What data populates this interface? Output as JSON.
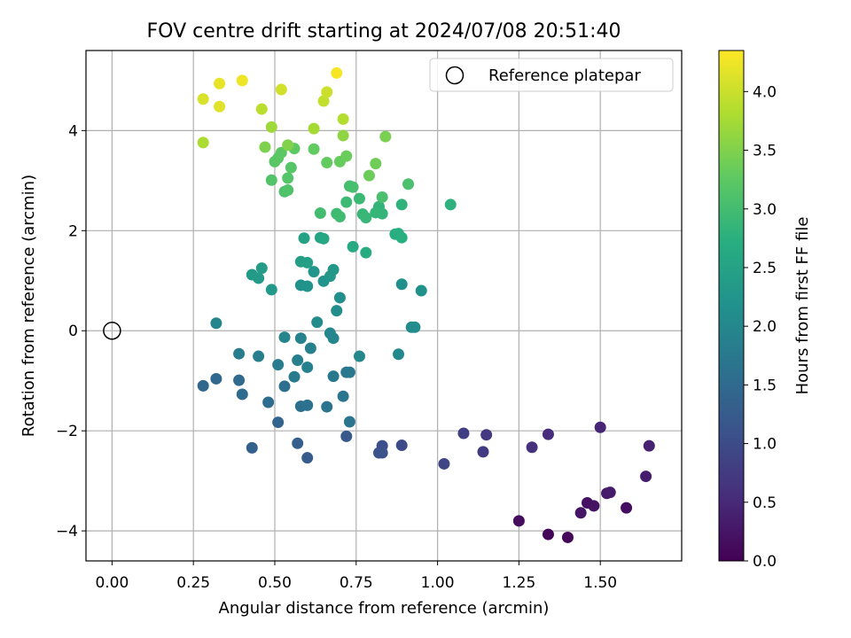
{
  "chart_data": {
    "type": "scatter",
    "title": "FOV centre drift starting at 2024/07/08 20:51:40",
    "xlabel": "Angular distance from reference (arcmin)",
    "ylabel": "Rotation from reference (arcmin)",
    "xlim": [
      -0.08,
      1.75
    ],
    "ylim": [
      -4.6,
      5.6
    ],
    "xticks": [
      0.0,
      0.25,
      0.5,
      0.75,
      1.0,
      1.25,
      1.5
    ],
    "xtick_labels": [
      "0.00",
      "0.25",
      "0.50",
      "0.75",
      "1.00",
      "1.25",
      "1.50"
    ],
    "yticks": [
      -4,
      -2,
      0,
      2,
      4
    ],
    "ytick_labels": [
      "−4",
      "−2",
      "0",
      "2",
      "4"
    ],
    "grid": true,
    "legend": {
      "label": "Reference platepar",
      "position": "top-right"
    },
    "reference_point": {
      "x": 0,
      "y": 0
    },
    "colorbar": {
      "label": "Hours from first FF file",
      "colormap": "viridis",
      "range": [
        0.0,
        4.35
      ],
      "ticks": [
        0.0,
        0.5,
        1.0,
        1.5,
        2.0,
        2.5,
        3.0,
        3.5,
        4.0
      ],
      "tick_labels": [
        "0.0",
        "0.5",
        "1.0",
        "1.5",
        "2.0",
        "2.5",
        "3.0",
        "3.5",
        "4.0"
      ]
    },
    "points": [
      [
        1.34,
        -4.07,
        0.05
      ],
      [
        1.4,
        -4.13,
        0.08
      ],
      [
        1.25,
        -3.8,
        0.12
      ],
      [
        1.58,
        -3.54,
        0.15
      ],
      [
        1.46,
        -3.44,
        0.2
      ],
      [
        1.48,
        -3.5,
        0.22
      ],
      [
        1.44,
        -3.64,
        0.25
      ],
      [
        1.52,
        -3.25,
        0.3
      ],
      [
        1.53,
        -3.23,
        0.32
      ],
      [
        1.64,
        -2.91,
        0.35
      ],
      [
        1.65,
        -2.3,
        0.4
      ],
      [
        1.5,
        -1.93,
        0.45
      ],
      [
        1.34,
        -2.07,
        0.55
      ],
      [
        1.29,
        -2.33,
        0.6
      ],
      [
        1.15,
        -2.08,
        0.7
      ],
      [
        1.14,
        -2.42,
        0.75
      ],
      [
        1.08,
        -2.05,
        0.8
      ],
      [
        1.02,
        -2.66,
        0.9
      ],
      [
        0.89,
        -2.29,
        1.0
      ],
      [
        0.83,
        -2.3,
        1.05
      ],
      [
        0.82,
        -2.44,
        1.1
      ],
      [
        0.83,
        -2.44,
        1.12
      ],
      [
        0.72,
        -2.11,
        1.2
      ],
      [
        0.6,
        -2.54,
        1.25
      ],
      [
        0.57,
        -2.25,
        1.3
      ],
      [
        0.43,
        -2.34,
        1.35
      ],
      [
        0.51,
        -1.83,
        1.4
      ],
      [
        0.28,
        -1.1,
        1.45
      ],
      [
        0.32,
        -0.96,
        1.48
      ],
      [
        0.39,
        -0.99,
        1.5
      ],
      [
        0.4,
        -1.27,
        1.52
      ],
      [
        0.48,
        -1.43,
        1.55
      ],
      [
        0.53,
        -1.11,
        1.58
      ],
      [
        0.58,
        -1.51,
        1.6
      ],
      [
        0.6,
        -1.49,
        1.62
      ],
      [
        0.66,
        -1.52,
        1.65
      ],
      [
        0.71,
        -1.31,
        1.68
      ],
      [
        0.73,
        -1.82,
        1.7
      ],
      [
        0.72,
        -0.83,
        1.72
      ],
      [
        0.73,
        -0.83,
        1.74
      ],
      [
        0.68,
        -0.91,
        1.76
      ],
      [
        0.56,
        -0.92,
        1.78
      ],
      [
        0.51,
        -0.68,
        1.8
      ],
      [
        0.39,
        -0.46,
        1.82
      ],
      [
        0.45,
        -0.51,
        1.84
      ],
      [
        0.57,
        -0.59,
        1.86
      ],
      [
        0.6,
        -0.73,
        1.88
      ],
      [
        0.61,
        -0.35,
        1.9
      ],
      [
        0.58,
        -0.15,
        1.92
      ],
      [
        0.53,
        -0.13,
        1.94
      ],
      [
        0.32,
        0.15,
        1.96
      ],
      [
        0.67,
        -0.05,
        1.98
      ],
      [
        0.68,
        -0.15,
        2.0
      ],
      [
        0.76,
        -0.51,
        2.02
      ],
      [
        0.88,
        -0.47,
        2.04
      ],
      [
        0.92,
        0.07,
        2.06
      ],
      [
        0.93,
        0.07,
        2.08
      ],
      [
        0.63,
        0.17,
        2.1
      ],
      [
        0.69,
        0.4,
        2.12
      ],
      [
        0.7,
        0.66,
        2.14
      ],
      [
        0.89,
        0.93,
        2.16
      ],
      [
        0.95,
        0.8,
        2.18
      ],
      [
        0.58,
        0.91,
        2.2
      ],
      [
        0.6,
        0.89,
        2.22
      ],
      [
        0.65,
        0.99,
        2.24
      ],
      [
        0.62,
        1.18,
        2.26
      ],
      [
        0.67,
        1.09,
        2.28
      ],
      [
        0.68,
        1.22,
        2.3
      ],
      [
        0.49,
        0.82,
        2.32
      ],
      [
        0.43,
        1.12,
        2.34
      ],
      [
        0.45,
        1.05,
        2.36
      ],
      [
        0.46,
        1.25,
        2.38
      ],
      [
        0.58,
        1.38,
        2.42
      ],
      [
        0.6,
        1.36,
        2.46
      ],
      [
        0.59,
        1.85,
        2.5
      ],
      [
        0.64,
        1.86,
        2.54
      ],
      [
        0.65,
        1.84,
        2.58
      ],
      [
        0.74,
        1.68,
        2.62
      ],
      [
        0.78,
        1.56,
        2.66
      ],
      [
        0.87,
        1.93,
        2.7
      ],
      [
        0.88,
        1.94,
        2.72
      ],
      [
        0.89,
        1.86,
        2.74
      ],
      [
        1.04,
        2.52,
        2.78
      ],
      [
        0.89,
        2.52,
        2.8
      ],
      [
        0.82,
        2.48,
        2.82
      ],
      [
        0.83,
        2.34,
        2.84
      ],
      [
        0.81,
        2.36,
        2.86
      ],
      [
        0.77,
        2.33,
        2.88
      ],
      [
        0.78,
        2.26,
        2.9
      ],
      [
        0.76,
        2.64,
        2.92
      ],
      [
        0.72,
        2.57,
        2.94
      ],
      [
        0.69,
        2.34,
        2.96
      ],
      [
        0.7,
        2.28,
        2.98
      ],
      [
        0.64,
        2.35,
        3.0
      ],
      [
        0.73,
        2.89,
        3.02
      ],
      [
        0.74,
        2.87,
        3.04
      ],
      [
        0.83,
        2.67,
        3.06
      ],
      [
        0.91,
        2.93,
        3.08
      ],
      [
        0.53,
        2.78,
        3.1
      ],
      [
        0.54,
        2.81,
        3.12
      ],
      [
        0.49,
        3.01,
        3.14
      ],
      [
        0.54,
        3.05,
        3.16
      ],
      [
        0.55,
        3.26,
        3.18
      ],
      [
        0.5,
        3.38,
        3.2
      ],
      [
        0.51,
        3.45,
        3.22
      ],
      [
        0.52,
        3.56,
        3.24
      ],
      [
        0.56,
        3.64,
        3.26
      ],
      [
        0.62,
        3.63,
        3.28
      ],
      [
        0.66,
        3.36,
        3.3
      ],
      [
        0.7,
        3.38,
        3.32
      ],
      [
        0.72,
        3.49,
        3.34
      ],
      [
        0.79,
        3.1,
        3.36
      ],
      [
        0.81,
        3.34,
        3.38
      ],
      [
        0.84,
        3.88,
        3.45
      ],
      [
        0.47,
        3.67,
        3.48
      ],
      [
        0.54,
        3.71,
        3.5
      ],
      [
        0.71,
        3.9,
        3.6
      ],
      [
        0.49,
        4.07,
        3.7
      ],
      [
        0.62,
        4.04,
        3.75
      ],
      [
        0.28,
        3.76,
        3.8
      ],
      [
        0.71,
        4.23,
        3.85
      ],
      [
        0.46,
        4.43,
        3.9
      ],
      [
        0.65,
        4.59,
        3.95
      ],
      [
        0.66,
        4.77,
        4.0
      ],
      [
        0.52,
        4.82,
        4.05
      ],
      [
        0.28,
        4.63,
        4.1
      ],
      [
        0.33,
        4.48,
        4.15
      ],
      [
        0.33,
        4.94,
        4.2
      ],
      [
        0.4,
        5.0,
        4.25
      ],
      [
        0.69,
        5.15,
        4.3
      ]
    ]
  }
}
